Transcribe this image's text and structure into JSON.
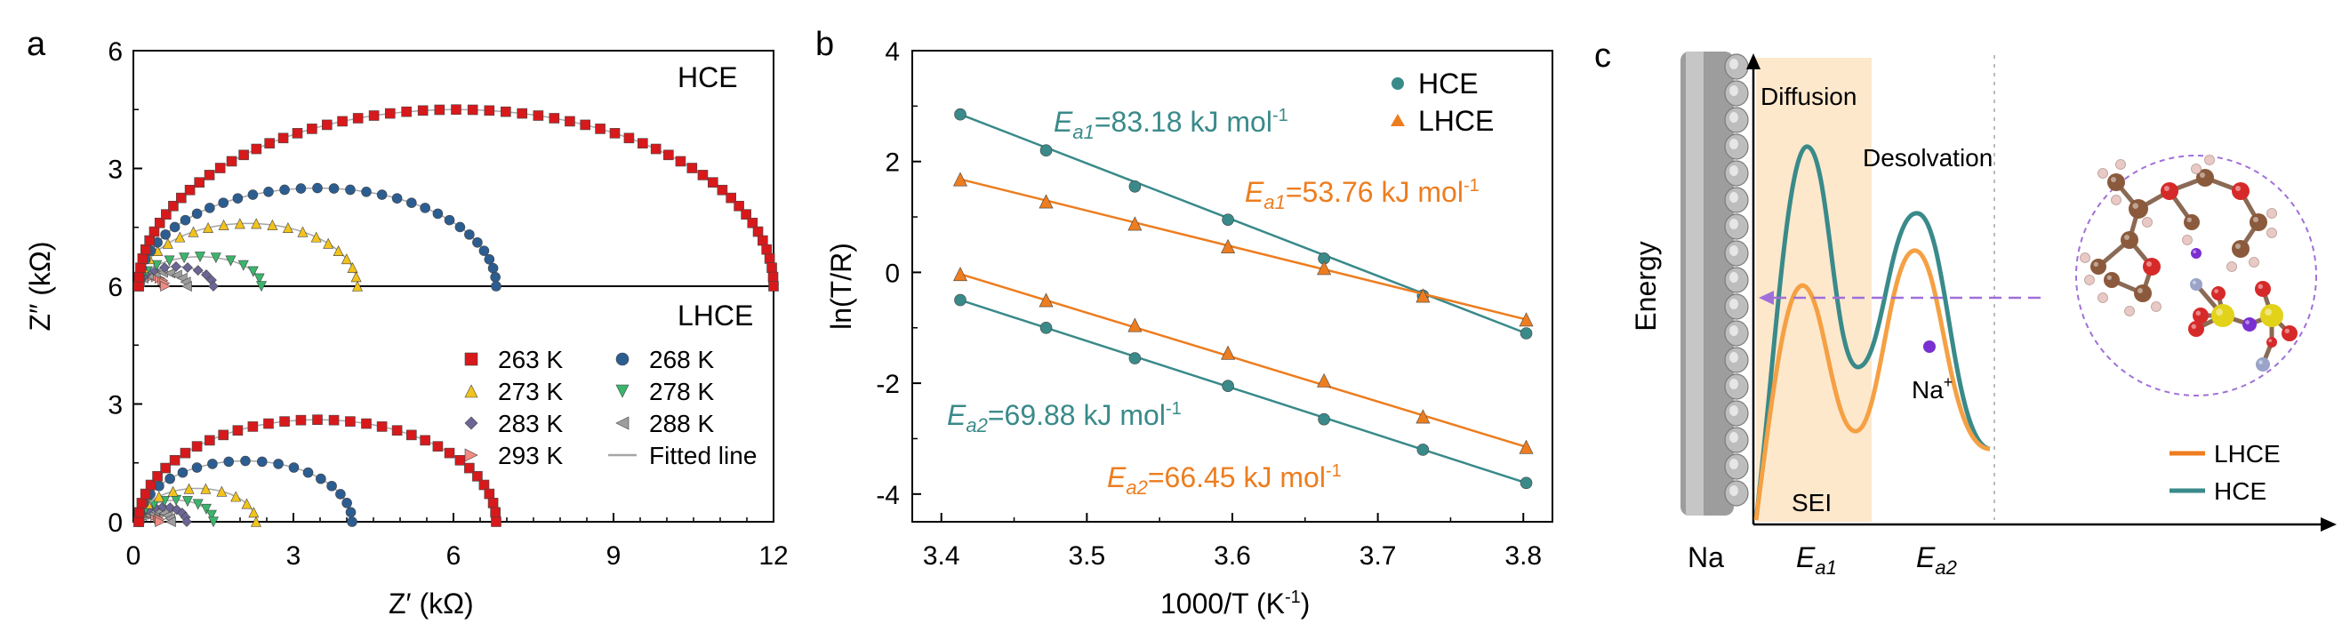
{
  "panel_a": {
    "label": "a",
    "top_label": "HCE",
    "bottom_label": "LHCE",
    "xlabel": "Z′ (kΩ)",
    "ylabel": "Z″ (kΩ)",
    "xticks": [
      "0",
      "3",
      "6",
      "9",
      "12"
    ],
    "yticks_top": [
      "6",
      "3"
    ],
    "yticks_mid": "6",
    "yticks_bottom": [
      "3",
      "0"
    ],
    "legend": [
      {
        "label": "263 K",
        "color": "#d7191c",
        "marker": "square"
      },
      {
        "label": "268 K",
        "color": "#2c5d91",
        "marker": "circle"
      },
      {
        "label": "273 K",
        "color": "#f2c31b",
        "marker": "triangle-up"
      },
      {
        "label": "278 K",
        "color": "#3bb56b",
        "marker": "triangle-down"
      },
      {
        "label": "283 K",
        "color": "#6b6696",
        "marker": "diamond"
      },
      {
        "label": "288 K",
        "color": "#9e9e9e",
        "marker": "triangle-left"
      },
      {
        "label": "293 K",
        "color": "#f28b82",
        "marker": "triangle-right"
      },
      {
        "label": "Fitted line",
        "color": "#a6a6a6",
        "marker": "line"
      }
    ]
  },
  "panel_b": {
    "label": "b",
    "xlabel": "1000/T (K",
    "xlabel_sup": "-1",
    "xlabel_end": ")",
    "ylabel": "ln(T/R)",
    "xticks": [
      "3.4",
      "3.5",
      "3.6",
      "3.7",
      "3.8"
    ],
    "yticks": [
      "4",
      "2",
      "0",
      "-2",
      "-4"
    ],
    "legend": [
      {
        "label": "HCE",
        "color": "#3a8a8a",
        "marker": "circle"
      },
      {
        "label": "LHCE",
        "color": "#ed7d1f",
        "marker": "triangle"
      }
    ],
    "annotations": [
      {
        "prefix": "E",
        "sub": "a1",
        "text": "=83.18 kJ mol",
        "sup": "-1",
        "color": "#3a8a8a"
      },
      {
        "prefix": "E",
        "sub": "a1",
        "text": "=53.76 kJ mol",
        "sup": "-1",
        "color": "#ed7d1f"
      },
      {
        "prefix": "E",
        "sub": "a2",
        "text": "=69.88 kJ mol",
        "sup": "-1",
        "color": "#3a8a8a"
      },
      {
        "prefix": "E",
        "sub": "a2",
        "text": "=66.45 kJ mol",
        "sup": "-1",
        "color": "#ed7d1f"
      }
    ]
  },
  "panel_c": {
    "label": "c",
    "ylabel": "Energy",
    "diffusion": "Diffusion",
    "desolvation": "Desolvation",
    "na_ion": "Na",
    "na_ion_sup": "+",
    "sei": "SEI",
    "na_electrode": "Na",
    "ea1": {
      "prefix": "E",
      "sub": "a1"
    },
    "ea2": {
      "prefix": "E",
      "sub": "a2"
    },
    "legend": [
      {
        "label": "LHCE",
        "color": "#ed7d1f"
      },
      {
        "label": "HCE",
        "color": "#3a8a8a"
      }
    ]
  },
  "chart_data": [
    {
      "type": "scatter",
      "title": "HCE",
      "xlabel": "Z′ (kΩ)",
      "ylabel": "Z″ (kΩ)",
      "xlim": [
        0,
        12
      ],
      "ylim": [
        0,
        6
      ],
      "series": [
        {
          "name": "263 K",
          "x_start": 0.1,
          "x_end": 12.0,
          "peak_y": 4.5
        },
        {
          "name": "268 K",
          "x_start": 0.1,
          "x_end": 6.8,
          "peak_y": 2.5
        },
        {
          "name": "273 K",
          "x_start": 0.1,
          "x_end": 4.2,
          "peak_y": 1.6
        },
        {
          "name": "278 K",
          "x_start": 0.1,
          "x_end": 2.4,
          "peak_y": 0.75
        },
        {
          "name": "283 K",
          "x_start": 0.1,
          "x_end": 1.5,
          "peak_y": 0.5
        },
        {
          "name": "288 K",
          "x_start": 0.1,
          "x_end": 1.0,
          "peak_y": 0.35
        },
        {
          "name": "293 K",
          "x_start": 0.1,
          "x_end": 0.6,
          "peak_y": 0.25
        }
      ]
    },
    {
      "type": "scatter",
      "title": "LHCE",
      "xlabel": "Z′ (kΩ)",
      "ylabel": "Z″ (kΩ)",
      "xlim": [
        0,
        12
      ],
      "ylim": [
        0,
        6
      ],
      "series": [
        {
          "name": "263 K",
          "x_start": 0.1,
          "x_end": 6.8,
          "peak_y": 2.6
        },
        {
          "name": "268 K",
          "x_start": 0.1,
          "x_end": 4.1,
          "peak_y": 1.55
        },
        {
          "name": "273 K",
          "x_start": 0.1,
          "x_end": 2.3,
          "peak_y": 0.85
        },
        {
          "name": "278 K",
          "x_start": 0.1,
          "x_end": 1.5,
          "peak_y": 0.55
        },
        {
          "name": "283 K",
          "x_start": 0.1,
          "x_end": 1.0,
          "peak_y": 0.38
        },
        {
          "name": "288 K",
          "x_start": 0.1,
          "x_end": 0.7,
          "peak_y": 0.27
        },
        {
          "name": "293 K",
          "x_start": 0.1,
          "x_end": 0.5,
          "peak_y": 0.2
        }
      ]
    },
    {
      "type": "line",
      "xlabel": "1000/T (K-1)",
      "ylabel": "ln(T/R)",
      "xlim": [
        3.38,
        3.82
      ],
      "ylim": [
        -4.5,
        4
      ],
      "x": [
        3.413,
        3.472,
        3.533,
        3.597,
        3.663,
        3.731,
        3.802
      ],
      "series": [
        {
          "name": "HCE",
          "line": "Ea1",
          "y": [
            2.85,
            2.2,
            1.55,
            0.95,
            0.25,
            -0.42,
            -1.1
          ]
        },
        {
          "name": "LHCE",
          "line": "Ea1",
          "y": [
            1.68,
            1.28,
            0.88,
            0.47,
            0.08,
            -0.42,
            -0.85
          ]
        },
        {
          "name": "LHCE",
          "line": "Ea2",
          "y": [
            -0.03,
            -0.5,
            -0.95,
            -1.45,
            -1.95,
            -2.6,
            -3.15
          ]
        },
        {
          "name": "HCE",
          "line": "Ea2",
          "y": [
            -0.5,
            -1.0,
            -1.55,
            -2.05,
            -2.65,
            -3.2,
            -3.8
          ]
        }
      ]
    }
  ]
}
